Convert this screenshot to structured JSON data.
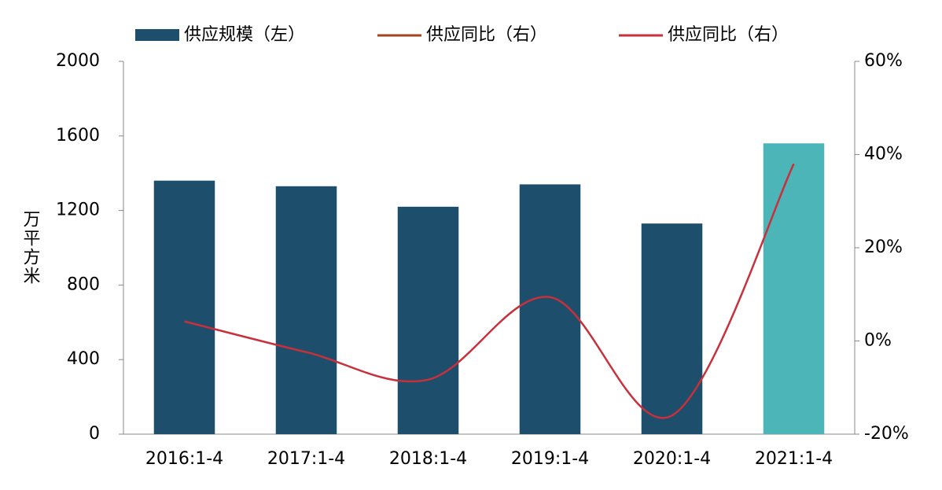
{
  "chart_data": {
    "type": "bar",
    "categories": [
      "2016:1-4",
      "2017:1-4",
      "2018:1-4",
      "2019:1-4",
      "2020:1-4",
      "2021:1-4"
    ],
    "y_label": "万平方米",
    "series": [
      {
        "name": "供应规模（左）",
        "type": "bar",
        "color": "#1d4e6b",
        "colors": [
          "#1d4e6b",
          "#1d4e6b",
          "#1d4e6b",
          "#1d4e6b",
          "#1d4e6b",
          "#4bb5b8"
        ],
        "values": [
          1360,
          1330,
          1220,
          1340,
          1130,
          1560
        ]
      },
      {
        "name": "供应同比（右）",
        "type": "line",
        "axis": "y2",
        "color": "#a0461e",
        "values": [
          null,
          null,
          null,
          null,
          null,
          null
        ]
      },
      {
        "name": "供应同比（右）",
        "type": "line",
        "axis": "y2",
        "color": "#c8303c",
        "values": [
          4.2,
          -2.4,
          -8.3,
          9.4,
          -16,
          38
        ]
      }
    ],
    "ylim": [
      0,
      2000
    ],
    "yticks": [
      0,
      400,
      800,
      1200,
      1600,
      2000
    ],
    "y2lim": [
      -20,
      60
    ],
    "y2ticks": [
      {
        "value": -20,
        "label": "-20%"
      },
      {
        "value": 0,
        "label": "0%"
      },
      {
        "value": 20,
        "label": "20%"
      },
      {
        "value": 40,
        "label": "40%"
      },
      {
        "value": 60,
        "label": "60%"
      }
    ]
  }
}
